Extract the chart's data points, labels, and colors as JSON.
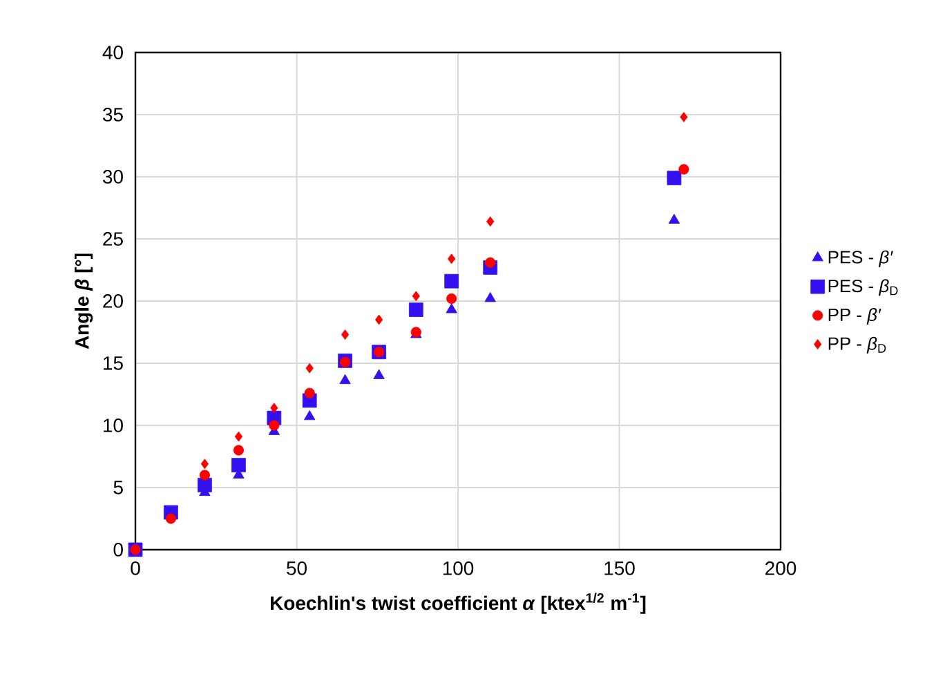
{
  "chart_data": {
    "type": "scatter",
    "xlabel": "Koechlin's twist coefficient *α* [ktex$^{1/2}$ m$^{-1}$]",
    "ylabel": "Angle *β* [°]",
    "xlim": [
      0,
      200
    ],
    "ylim": [
      0,
      40
    ],
    "xticks": [
      0,
      50,
      100,
      150,
      200
    ],
    "yticks": [
      0,
      5,
      10,
      15,
      20,
      25,
      30,
      35,
      40
    ],
    "grid": true,
    "legend": "right",
    "series": [
      {
        "name": "PES - *β′*",
        "color": "#3311ee",
        "marker": "triangle",
        "x": [
          21.5,
          32,
          43,
          54,
          65,
          75.5,
          87,
          98,
          110,
          167
        ],
        "values": [
          4.6,
          6,
          9.5,
          10.7,
          13.6,
          14,
          17.3,
          19.3,
          20.2,
          26.5
        ]
      },
      {
        "name": "PES - *β*$_{D}$",
        "color": "#3311ee",
        "marker": "square",
        "x": [
          0,
          11,
          21.5,
          32,
          43,
          54,
          65,
          75.5,
          87,
          98,
          110,
          167
        ],
        "values": [
          0,
          3,
          5.2,
          6.8,
          10.6,
          12,
          15.2,
          15.9,
          19.3,
          21.6,
          22.7,
          29.9
        ]
      },
      {
        "name": "PP - *β′*",
        "color": "#ff0000",
        "marker": "circle",
        "x": [
          0,
          11,
          21.5,
          32,
          43,
          54,
          65,
          75.5,
          87,
          98,
          110,
          170
        ],
        "values": [
          0,
          2.5,
          6,
          8,
          10,
          12.6,
          15.1,
          15.9,
          17.5,
          20.2,
          23.1,
          30.6
        ]
      },
      {
        "name": "PP - *β*$_{D}$",
        "color": "#ff0000",
        "marker": "diamond",
        "x": [
          21.5,
          32,
          43,
          54,
          65,
          75.5,
          87,
          98,
          110,
          170
        ],
        "values": [
          6.9,
          9.1,
          11.4,
          14.6,
          17.3,
          18.5,
          20.4,
          23.4,
          26.4,
          34.8
        ]
      }
    ]
  }
}
